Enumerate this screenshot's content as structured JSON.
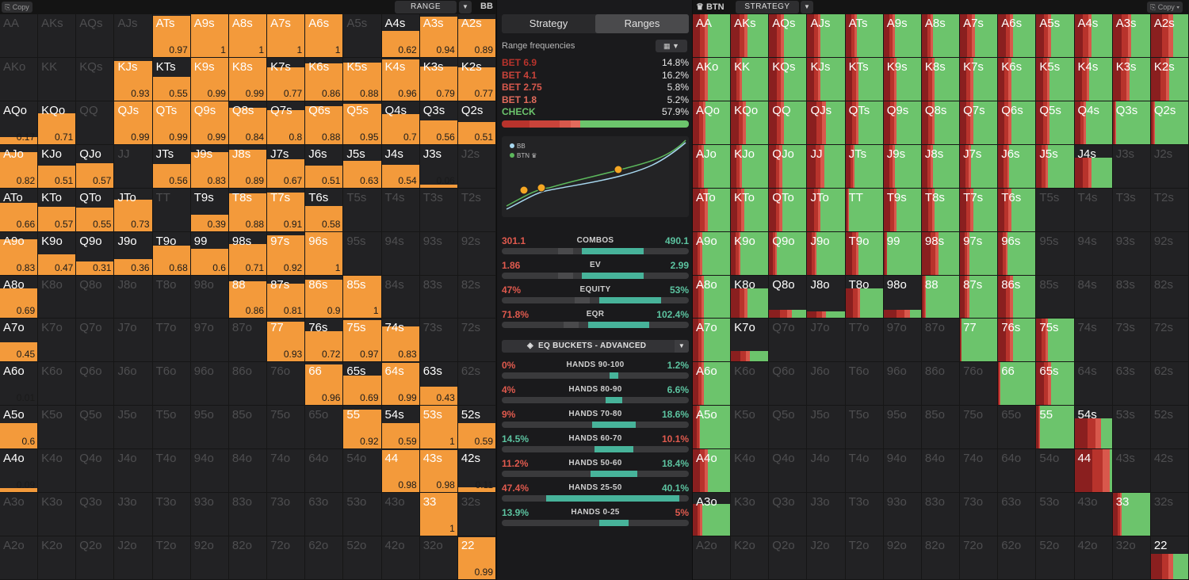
{
  "left_header": {
    "copy_label": "Copy",
    "select_label": "RANGE",
    "position": "BB"
  },
  "right_header": {
    "position": "BTN",
    "select_label": "STRATEGY",
    "copy_label": "Copy"
  },
  "hands": [
    [
      "AA",
      "AKs",
      "AQs",
      "AJs",
      "ATs",
      "A9s",
      "A8s",
      "A7s",
      "A6s",
      "A5s",
      "A4s",
      "A3s",
      "A2s"
    ],
    [
      "AKo",
      "KK",
      "KQs",
      "KJs",
      "KTs",
      "K9s",
      "K8s",
      "K7s",
      "K6s",
      "K5s",
      "K4s",
      "K3s",
      "K2s"
    ],
    [
      "AQo",
      "KQo",
      "QQ",
      "QJs",
      "QTs",
      "Q9s",
      "Q8s",
      "Q7s",
      "Q6s",
      "Q5s",
      "Q4s",
      "Q3s",
      "Q2s"
    ],
    [
      "AJo",
      "KJo",
      "QJo",
      "JJ",
      "JTs",
      "J9s",
      "J8s",
      "J7s",
      "J6s",
      "J5s",
      "J4s",
      "J3s",
      "J2s"
    ],
    [
      "ATo",
      "KTo",
      "QTo",
      "JTo",
      "TT",
      "T9s",
      "T8s",
      "T7s",
      "T6s",
      "T5s",
      "T4s",
      "T3s",
      "T2s"
    ],
    [
      "A9o",
      "K9o",
      "Q9o",
      "J9o",
      "T9o",
      "99",
      "98s",
      "97s",
      "96s",
      "95s",
      "94s",
      "93s",
      "92s"
    ],
    [
      "A8o",
      "K8o",
      "Q8o",
      "J8o",
      "T8o",
      "98o",
      "88",
      "87s",
      "86s",
      "85s",
      "84s",
      "83s",
      "82s"
    ],
    [
      "A7o",
      "K7o",
      "Q7o",
      "J7o",
      "T7o",
      "97o",
      "87o",
      "77",
      "76s",
      "75s",
      "74s",
      "73s",
      "72s"
    ],
    [
      "A6o",
      "K6o",
      "Q6o",
      "J6o",
      "T6o",
      "96o",
      "86o",
      "76o",
      "66",
      "65s",
      "64s",
      "63s",
      "62s"
    ],
    [
      "A5o",
      "K5o",
      "Q5o",
      "J5o",
      "T5o",
      "95o",
      "85o",
      "75o",
      "65o",
      "55",
      "54s",
      "53s",
      "52s"
    ],
    [
      "A4o",
      "K4o",
      "Q4o",
      "J4o",
      "T4o",
      "94o",
      "84o",
      "74o",
      "64o",
      "54o",
      "44",
      "43s",
      "42s"
    ],
    [
      "A3o",
      "K3o",
      "Q3o",
      "J3o",
      "T3o",
      "93o",
      "83o",
      "73o",
      "63o",
      "53o",
      "43o",
      "33",
      "32s"
    ],
    [
      "A2o",
      "K2o",
      "Q2o",
      "J2o",
      "T2o",
      "92o",
      "82o",
      "72o",
      "62o",
      "52o",
      "42o",
      "32o",
      "22"
    ]
  ],
  "bb_range": [
    [
      0,
      0,
      0,
      0,
      0.97,
      1,
      1,
      1,
      1,
      0,
      0.62,
      0.94,
      0.89
    ],
    [
      0,
      0,
      0,
      0.93,
      0.55,
      0.99,
      0.99,
      0.77,
      0.86,
      0.88,
      0.96,
      0.79,
      0.77
    ],
    [
      0.17,
      0.71,
      0,
      0.99,
      0.99,
      0.99,
      0.84,
      0.8,
      0.88,
      0.95,
      0.7,
      0.56,
      0.51
    ],
    [
      0.82,
      0.51,
      0.57,
      0,
      0.56,
      0.83,
      0.89,
      0.67,
      0.51,
      0.63,
      0.54,
      0.06,
      0
    ],
    [
      0.66,
      0.57,
      0.55,
      0.73,
      0,
      0.39,
      0.88,
      0.91,
      0.58,
      0,
      0,
      0,
      0
    ],
    [
      0.83,
      0.47,
      0.31,
      0.36,
      0.68,
      0.6,
      0.71,
      0.92,
      1,
      0,
      0,
      0,
      0
    ],
    [
      0.69,
      0,
      0,
      0,
      0,
      0,
      0.86,
      0.81,
      0.9,
      1,
      0,
      0,
      0
    ],
    [
      0.45,
      0,
      0,
      0,
      0,
      0,
      0,
      0.93,
      0.72,
      0.97,
      0.83,
      0,
      0
    ],
    [
      0.01,
      0,
      0,
      0,
      0,
      0,
      0,
      0,
      0.96,
      0.69,
      0.99,
      0.43,
      0
    ],
    [
      0.6,
      0,
      0,
      0,
      0,
      0,
      0,
      0,
      0,
      0.92,
      0.59,
      1,
      0.59
    ],
    [
      0.09,
      0,
      0,
      0,
      0,
      0,
      0,
      0,
      0,
      0,
      0.98,
      0.98,
      0.11
    ],
    [
      0,
      0,
      0,
      0,
      0,
      0,
      0,
      0,
      0,
      0,
      0,
      1,
      0
    ],
    [
      0,
      0,
      0,
      0,
      0,
      0,
      0,
      0,
      0,
      0,
      0,
      0,
      0.99
    ]
  ],
  "btn_strategy": [
    [
      1,
      1,
      1,
      1,
      1,
      1,
      1,
      1,
      1,
      1,
      1,
      1,
      1
    ],
    [
      1,
      1,
      1,
      1,
      1,
      1,
      1,
      1,
      1,
      1,
      1,
      1,
      1
    ],
    [
      1,
      1,
      1,
      1,
      1,
      1,
      1,
      1,
      1,
      1,
      1,
      1,
      1
    ],
    [
      1,
      1,
      1,
      1,
      1,
      1,
      1,
      1,
      1,
      1,
      0.7,
      0,
      0
    ],
    [
      1,
      1,
      1,
      1,
      1,
      1,
      1,
      1,
      1,
      0,
      0,
      0,
      0
    ],
    [
      1,
      1,
      1,
      1,
      1,
      1,
      1,
      1,
      1,
      0,
      0,
      0,
      0
    ],
    [
      1,
      0.7,
      0.2,
      0.15,
      0.7,
      0.2,
      1,
      1,
      1,
      0,
      0,
      0,
      0
    ],
    [
      1,
      0.25,
      0,
      0,
      0,
      0,
      0,
      1,
      1,
      1,
      0,
      0,
      0
    ],
    [
      1,
      0,
      0,
      0,
      0,
      0,
      0,
      0,
      1,
      1,
      0,
      0,
      0
    ],
    [
      1,
      0,
      0,
      0,
      0,
      0,
      0,
      0,
      0,
      1,
      0.7,
      0,
      0
    ],
    [
      1,
      0,
      0,
      0,
      0,
      0,
      0,
      0,
      0,
      0,
      1,
      0,
      0
    ],
    [
      0.75,
      0,
      0,
      0,
      0,
      0,
      0,
      0,
      0,
      0,
      0,
      1,
      0
    ],
    [
      0,
      0,
      0,
      0,
      0,
      0,
      0,
      0,
      0,
      0,
      0,
      0,
      0.6
    ]
  ],
  "btn_check_share": [
    [
      0.6,
      0.55,
      0.6,
      0.65,
      0.7,
      0.7,
      0.7,
      0.6,
      0.6,
      0.6,
      0.55,
      0.5,
      0.4
    ],
    [
      0.6,
      0.7,
      0.6,
      0.65,
      0.65,
      0.65,
      0.65,
      0.65,
      0.65,
      0.65,
      0.6,
      0.55,
      0.5
    ],
    [
      0.65,
      0.6,
      0.6,
      0.5,
      0.65,
      0.65,
      0.65,
      0.65,
      0.65,
      0.65,
      0.7,
      0.9,
      0.9
    ],
    [
      0.7,
      0.7,
      0.65,
      0.55,
      0.75,
      0.7,
      0.7,
      0.7,
      0.7,
      0.7,
      0.55,
      0,
      0
    ],
    [
      0.6,
      0.65,
      0.65,
      0.65,
      0.9,
      0.65,
      0.65,
      0.65,
      0.65,
      0,
      0,
      0,
      0
    ],
    [
      0.75,
      0.75,
      0.8,
      0.75,
      0.65,
      0.9,
      0.55,
      0.75,
      0.75,
      0,
      0,
      0,
      0
    ],
    [
      0.7,
      0.55,
      0.4,
      0.5,
      0.6,
      0.3,
      0.9,
      0.75,
      0.6,
      0,
      0,
      0,
      0
    ],
    [
      0.7,
      0.5,
      0,
      0,
      0,
      0,
      0,
      0.95,
      0.6,
      0.7,
      0,
      0,
      0
    ],
    [
      0.7,
      0,
      0,
      0,
      0,
      0,
      0,
      0,
      0.95,
      0.6,
      0,
      0,
      0
    ],
    [
      0.8,
      0,
      0,
      0,
      0,
      0,
      0,
      0,
      0,
      0.9,
      0.3,
      0,
      0
    ],
    [
      0.6,
      0,
      0,
      0,
      0,
      0,
      0,
      0,
      0,
      0,
      0.05,
      0,
      0
    ],
    [
      0.75,
      0,
      0,
      0,
      0,
      0,
      0,
      0,
      0,
      0,
      0,
      0.75,
      0
    ],
    [
      0,
      0,
      0,
      0,
      0,
      0,
      0,
      0,
      0,
      0,
      0,
      0,
      0.4
    ]
  ],
  "center": {
    "tabs": [
      "Strategy",
      "Ranges"
    ],
    "range_freq_title": "Range frequencies",
    "actions": [
      {
        "label": "BET 6.9",
        "value": "14.8%",
        "color": "#b8332c"
      },
      {
        "label": "BET 4.1",
        "value": "16.2%",
        "color": "#c9433a"
      },
      {
        "label": "BET 2.75",
        "value": "5.8%",
        "color": "#d8584c"
      },
      {
        "label": "BET 1.8",
        "value": "5.2%",
        "color": "#e26b5c"
      },
      {
        "label": "CHECK",
        "value": "57.9%",
        "color": "#6cc46c"
      }
    ],
    "freq_shares": [
      0.148,
      0.162,
      0.058,
      0.052,
      0.579
    ],
    "legend": [
      {
        "name": "BB",
        "color": "#a8d8f0"
      },
      {
        "name": "BTN ♛",
        "color": "#5cb85c"
      }
    ],
    "stats": [
      {
        "left": "301.1",
        "label": "COMBOS",
        "right": "490.1",
        "lfrac": 0.38
      },
      {
        "left": "1.86",
        "label": "EV",
        "right": "2.99",
        "lfrac": 0.38
      },
      {
        "left": "47%",
        "label": "EQUITY",
        "right": "53%",
        "lfrac": 0.47
      },
      {
        "left": "71.8%",
        "label": "EQR",
        "right": "102.4%",
        "lfrac": 0.41
      }
    ],
    "eq_buckets_label": "EQ BUCKETS - ADVANCED",
    "buckets": [
      {
        "left": "0%",
        "label": "HANDS 90-100",
        "right": "1.2%",
        "lclass": "r",
        "rclass": "g",
        "lfrac": 0.0,
        "rfrac": 0.012
      },
      {
        "left": "4%",
        "label": "HANDS 80-90",
        "right": "6.6%",
        "lclass": "r",
        "rclass": "g",
        "lfrac": 0.04,
        "rfrac": 0.066
      },
      {
        "left": "9%",
        "label": "HANDS 70-80",
        "right": "18.6%",
        "lclass": "r",
        "rclass": "g",
        "lfrac": 0.09,
        "rfrac": 0.186
      },
      {
        "left": "14.5%",
        "label": "HANDS 60-70",
        "right": "10.1%",
        "lclass": "g",
        "rclass": "r",
        "lfrac": 0.145,
        "rfrac": 0.101
      },
      {
        "left": "11.2%",
        "label": "HANDS 50-60",
        "right": "18.4%",
        "lclass": "r",
        "rclass": "g",
        "lfrac": 0.112,
        "rfrac": 0.184
      },
      {
        "left": "47.4%",
        "label": "HANDS 25-50",
        "right": "40.1%",
        "lclass": "r",
        "rclass": "g",
        "lfrac": 0.474,
        "rfrac": 0.401
      },
      {
        "left": "13.9%",
        "label": "HANDS 0-25",
        "right": "5%",
        "lclass": "g",
        "rclass": "r",
        "lfrac": 0.139,
        "rfrac": 0.05
      }
    ]
  },
  "colors": {
    "range_orange": "#f39a3b",
    "check_green": "#6cc46c",
    "bet_red": "#b8332c",
    "teal": "#47b39a"
  }
}
